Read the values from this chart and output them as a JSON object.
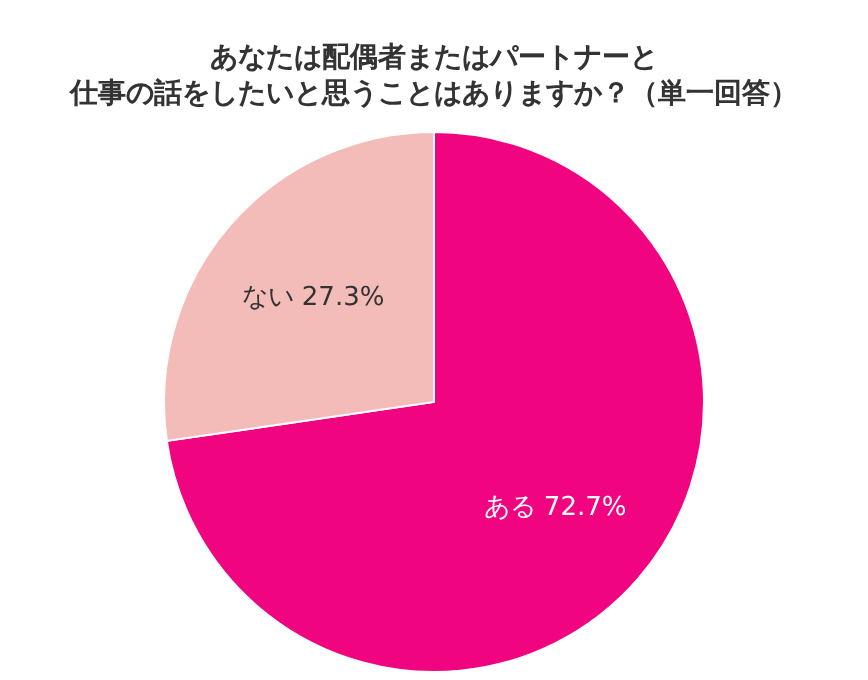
{
  "chart_data": {
    "type": "pie",
    "title": "あなたは配偶者またはパートナーと仕事の話をしたいと思うことはありますか？（単一回答）",
    "categories": [
      "ある",
      "ない"
    ],
    "values": [
      72.7,
      27.3
    ],
    "colors": [
      "#f0047f",
      "#f4bcb8"
    ],
    "value_labels": [
      "72.7%",
      "27.3%"
    ],
    "legend": false
  }
}
